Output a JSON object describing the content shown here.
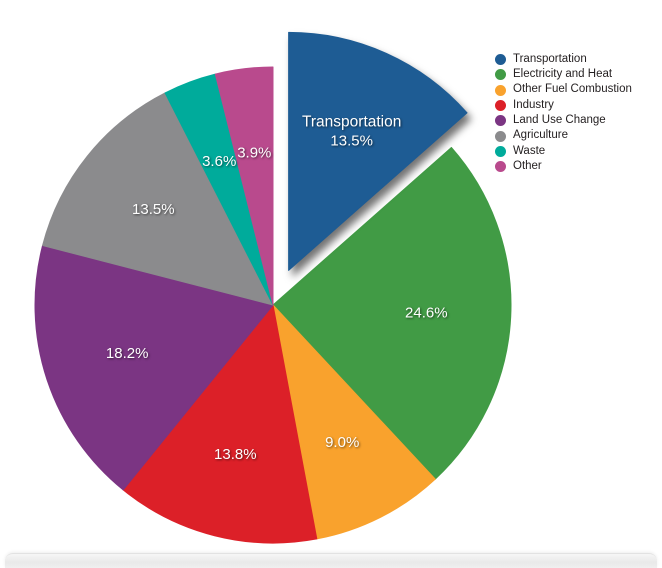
{
  "chart_data": {
    "type": "pie",
    "title": "",
    "direction": "clockwise",
    "start_angle_deg": 0,
    "legend_position": "top-right",
    "label_style": "percent-inside-white",
    "background_color": "#ffffff",
    "slice_label_color": "#ffffff",
    "legend_text_color": "#231F20",
    "slices": [
      {
        "label": "Transportation",
        "value": 13.5,
        "pct_label": "13.5%",
        "color": "#1E5C94",
        "exploded": true
      },
      {
        "label": "Electricity and Heat",
        "value": 24.6,
        "pct_label": "24.6%",
        "color": "#419B45",
        "exploded": false
      },
      {
        "label": "Other Fuel Combustion",
        "value": 9.0,
        "pct_label": "9.0%",
        "color": "#F9A22D",
        "exploded": false
      },
      {
        "label": "Industry",
        "value": 13.8,
        "pct_label": "13.8%",
        "color": "#DC2028",
        "exploded": false
      },
      {
        "label": "Land Use Change",
        "value": 18.2,
        "pct_label": "18.2%",
        "color": "#7B3583",
        "exploded": false
      },
      {
        "label": "Agriculture",
        "value": 13.5,
        "pct_label": "13.5%",
        "color": "#8B8B8D",
        "exploded": false
      },
      {
        "label": "Waste",
        "value": 3.6,
        "pct_label": "3.6%",
        "color": "#00AB9B",
        "exploded": false
      },
      {
        "label": "Other",
        "value": 3.9,
        "pct_label": "3.9%",
        "color": "#B94A8D",
        "exploded": false
      }
    ]
  }
}
